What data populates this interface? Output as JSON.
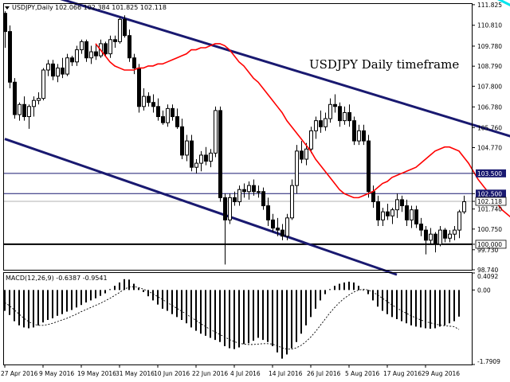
{
  "header": {
    "symbol": "USDJPY,Daily",
    "ohlc": "102.066 102.384 101.825 102.118"
  },
  "annotation": {
    "text": "USDJPY Daily timeframe",
    "color": "#00008b"
  },
  "macd_label": "MACD(12,26,9) -0.6387 -0.9541",
  "colors": {
    "candle": "#000000",
    "ma": "#ff0000",
    "channel": "#191970",
    "hline": "#191970",
    "cyan": "#00e5ee",
    "signal": "#000000",
    "price_tag_bg": "#191970",
    "price_tag_text": "#ffffff"
  },
  "chart_data": [
    {
      "type": "candlestick",
      "title": "USDJPY Daily timeframe",
      "ylim": [
        98.74,
        111.86
      ],
      "y_ticks": [
        "111.825",
        "110.810",
        "109.780",
        "108.790",
        "107.800",
        "106.780",
        "105.760",
        "104.770",
        "103.500",
        "102.500",
        "102.118",
        "101.740",
        "100.750",
        "100.000",
        "99.730",
        "98.740"
      ],
      "x_labels": [
        "27 Apr 2016",
        "9 May 2016",
        "19 May 2016",
        "31 May 2016",
        "10 Jun 2016",
        "22 Jun 2016",
        "4 Jul 2016",
        "14 Jul 2016",
        "26 Jul 2016",
        "5 Aug 2016",
        "17 Aug 2016",
        "29 Aug 2016"
      ],
      "candles": [
        [
          111.4,
          111.5,
          109.7,
          110.5
        ],
        [
          110.5,
          110.8,
          107.7,
          108.0
        ],
        [
          108.0,
          108.2,
          106.2,
          106.4
        ],
        [
          106.4,
          107.0,
          106.1,
          106.9
        ],
        [
          106.9,
          107.3,
          106.1,
          106.3
        ],
        [
          106.3,
          106.9,
          105.7,
          106.8
        ],
        [
          106.8,
          107.3,
          106.3,
          107.1
        ],
        [
          107.1,
          107.5,
          106.9,
          107.2
        ],
        [
          107.2,
          108.7,
          107.1,
          108.6
        ],
        [
          108.6,
          109.1,
          108.3,
          108.9
        ],
        [
          108.9,
          109.1,
          108.1,
          108.3
        ],
        [
          108.3,
          108.9,
          108.0,
          108.7
        ],
        [
          108.7,
          109.2,
          108.2,
          108.4
        ],
        [
          108.4,
          109.4,
          108.3,
          109.2
        ],
        [
          109.2,
          109.3,
          108.8,
          109.0
        ],
        [
          109.0,
          109.8,
          108.8,
          109.6
        ],
        [
          109.6,
          110.1,
          109.4,
          110.0
        ],
        [
          110.0,
          110.1,
          109.0,
          109.2
        ],
        [
          109.2,
          109.8,
          108.9,
          109.5
        ],
        [
          109.5,
          109.9,
          109.1,
          109.3
        ],
        [
          109.3,
          110.1,
          109.2,
          109.9
        ],
        [
          109.9,
          110.0,
          109.3,
          109.4
        ],
        [
          109.4,
          110.3,
          109.2,
          110.1
        ],
        [
          110.1,
          110.3,
          109.7,
          110.0
        ],
        [
          110.0,
          111.2,
          109.9,
          111.1
        ],
        [
          111.1,
          111.3,
          110.2,
          110.3
        ],
        [
          110.3,
          110.6,
          109.0,
          109.2
        ],
        [
          109.2,
          109.4,
          108.4,
          108.7
        ],
        [
          108.7,
          108.9,
          106.5,
          106.8
        ],
        [
          106.8,
          107.7,
          106.6,
          107.3
        ],
        [
          107.3,
          107.5,
          106.8,
          107.0
        ],
        [
          107.0,
          107.4,
          106.5,
          106.8
        ],
        [
          106.8,
          107.2,
          106.1,
          106.3
        ],
        [
          106.3,
          106.6,
          105.9,
          106.0
        ],
        [
          106.0,
          106.9,
          105.8,
          106.7
        ],
        [
          106.7,
          106.9,
          106.1,
          106.3
        ],
        [
          106.3,
          106.7,
          105.7,
          105.8
        ],
        [
          105.8,
          106.2,
          104.2,
          104.4
        ],
        [
          104.4,
          105.4,
          104.1,
          105.1
        ],
        [
          105.1,
          105.4,
          103.6,
          103.8
        ],
        [
          103.8,
          104.2,
          103.5,
          104.0
        ],
        [
          104.0,
          104.6,
          103.6,
          104.4
        ],
        [
          104.4,
          104.8,
          103.9,
          104.1
        ],
        [
          104.1,
          104.7,
          103.8,
          104.5
        ],
        [
          104.5,
          106.8,
          104.3,
          106.6
        ],
        [
          106.6,
          106.8,
          102.1,
          102.3
        ],
        [
          102.3,
          102.5,
          99.0,
          101.2
        ],
        [
          101.2,
          102.5,
          101.0,
          102.3
        ],
        [
          102.3,
          102.6,
          101.9,
          102.1
        ],
        [
          102.1,
          102.9,
          101.9,
          102.7
        ],
        [
          102.7,
          103.0,
          102.3,
          102.6
        ],
        [
          102.6,
          103.1,
          102.2,
          102.9
        ],
        [
          102.9,
          103.2,
          102.4,
          102.6
        ],
        [
          102.6,
          102.9,
          102.3,
          102.6
        ],
        [
          102.6,
          102.8,
          101.7,
          101.9
        ],
        [
          101.9,
          102.3,
          100.9,
          101.2
        ],
        [
          101.2,
          101.5,
          100.6,
          100.8
        ],
        [
          100.8,
          101.3,
          100.4,
          100.7
        ],
        [
          100.7,
          101.0,
          100.2,
          100.4
        ],
        [
          100.4,
          101.5,
          100.2,
          101.3
        ],
        [
          101.3,
          103.2,
          101.2,
          102.9
        ],
        [
          102.9,
          104.9,
          102.5,
          104.6
        ],
        [
          104.6,
          105.1,
          104.0,
          104.2
        ],
        [
          104.2,
          105.0,
          103.9,
          104.7
        ],
        [
          104.7,
          105.8,
          104.5,
          105.6
        ],
        [
          105.6,
          106.3,
          105.2,
          106.1
        ],
        [
          106.1,
          106.6,
          105.5,
          105.8
        ],
        [
          105.8,
          106.5,
          105.6,
          106.2
        ],
        [
          106.2,
          107.2,
          106.0,
          106.9
        ],
        [
          106.9,
          107.4,
          106.5,
          106.8
        ],
        [
          106.8,
          107.0,
          105.8,
          106.1
        ],
        [
          106.1,
          106.8,
          105.9,
          106.5
        ],
        [
          106.5,
          106.9,
          105.8,
          106.1
        ],
        [
          106.1,
          106.3,
          104.9,
          105.1
        ],
        [
          105.1,
          105.9,
          104.9,
          105.6
        ],
        [
          105.6,
          105.9,
          104.9,
          105.1
        ],
        [
          105.1,
          105.4,
          102.3,
          102.6
        ],
        [
          102.6,
          102.9,
          101.8,
          102.1
        ],
        [
          102.1,
          102.4,
          100.9,
          101.2
        ],
        [
          101.2,
          101.8,
          100.9,
          101.6
        ],
        [
          101.6,
          102.0,
          101.2,
          101.4
        ],
        [
          101.4,
          101.8,
          101.0,
          101.7
        ],
        [
          101.7,
          102.5,
          101.3,
          102.2
        ],
        [
          102.2,
          102.4,
          101.6,
          101.9
        ],
        [
          101.9,
          102.2,
          100.9,
          101.2
        ],
        [
          101.2,
          101.9,
          100.8,
          101.7
        ],
        [
          101.7,
          101.9,
          100.8,
          101.0
        ],
        [
          101.0,
          101.3,
          100.4,
          100.7
        ],
        [
          100.7,
          100.9,
          99.5,
          100.2
        ],
        [
          100.2,
          100.8,
          100.0,
          100.5
        ],
        [
          100.5,
          100.6,
          99.6,
          100.0
        ],
        [
          100.0,
          100.9,
          99.9,
          100.7
        ],
        [
          100.7,
          100.8,
          100.1,
          100.3
        ],
        [
          100.3,
          100.7,
          100.1,
          100.5
        ],
        [
          100.5,
          100.9,
          100.2,
          100.7
        ],
        [
          100.7,
          101.7,
          100.3,
          101.6
        ],
        [
          101.6,
          102.4,
          101.5,
          102.1
        ]
      ],
      "ma_period": 20,
      "series": [
        {
          "values": [
            109.9,
            109.6,
            109.3,
            109.0,
            108.8,
            108.7,
            108.6,
            108.6,
            108.6,
            108.7,
            108.7,
            108.8,
            108.8,
            108.9,
            108.9,
            109.0,
            109.1,
            109.2,
            109.3,
            109.4,
            109.6,
            109.6,
            109.7,
            109.7,
            109.8,
            109.9,
            109.9,
            109.8,
            109.6,
            109.3,
            109.0,
            108.8,
            108.5,
            108.2,
            108.0,
            107.7,
            107.4,
            107.1,
            106.8,
            106.5,
            106.1,
            105.8,
            105.5,
            105.2,
            104.9,
            104.6,
            104.2,
            103.9,
            103.6,
            103.3,
            103.0,
            102.7,
            102.5,
            102.4,
            102.3,
            102.3,
            102.4,
            102.5,
            102.6,
            102.8,
            103.0,
            103.1,
            103.3,
            103.4,
            103.5,
            103.6,
            103.7,
            103.8,
            104.0,
            104.2,
            104.4,
            104.6,
            104.7,
            104.8,
            104.8,
            104.7,
            104.6,
            104.3,
            104.0,
            103.6,
            103.2,
            102.9,
            102.6,
            102.3,
            102.0,
            101.7,
            101.5,
            101.3,
            101.2,
            101.1,
            101.0,
            100.9,
            100.9
          ]
        }
      ],
      "lines": {
        "channel_upper": [
          [
            0,
            112.95
          ],
          [
            113,
            104.81
          ]
        ],
        "channel_lower": [
          [
            0,
            105.2
          ],
          [
            82,
            98.5
          ]
        ],
        "cyan_trend": [
          [
            96,
            112.95
          ],
          [
            112,
            111.06
          ]
        ],
        "horizontal": [
          103.5,
          102.5,
          102.118,
          100.0
        ]
      }
    },
    {
      "type": "bar",
      "title": "MACD(12,26,9) -0.6387 -0.9541",
      "ylim": [
        -1.7909,
        0.4092
      ],
      "y_ticks": [
        "0.4092",
        "0.00",
        "-1.7909"
      ],
      "values": [
        -0.5,
        -0.6,
        -0.75,
        -0.85,
        -0.9,
        -0.92,
        -0.9,
        -0.85,
        -0.78,
        -0.72,
        -0.68,
        -0.62,
        -0.58,
        -0.52,
        -0.48,
        -0.42,
        -0.36,
        -0.3,
        -0.25,
        -0.2,
        -0.14,
        -0.08,
        0.02,
        0.1,
        0.18,
        0.26,
        0.25,
        0.15,
        0.05,
        -0.05,
        -0.15,
        -0.25,
        -0.35,
        -0.45,
        -0.5,
        -0.58,
        -0.65,
        -0.72,
        -0.8,
        -0.9,
        -0.98,
        -1.05,
        -1.1,
        -1.15,
        -1.2,
        -1.25,
        -1.35,
        -1.4,
        -1.42,
        -1.38,
        -1.3,
        -1.28,
        -1.22,
        -1.15,
        -1.2,
        -1.25,
        -1.35,
        -1.5,
        -1.65,
        -1.55,
        -1.4,
        -1.25,
        -1.05,
        -0.85,
        -0.65,
        -0.45,
        -0.25,
        -0.1,
        0.02,
        0.1,
        0.15,
        0.18,
        0.2,
        0.18,
        0.1,
        0.0,
        -0.1,
        -0.25,
        -0.4,
        -0.5,
        -0.58,
        -0.65,
        -0.7,
        -0.75,
        -0.8,
        -0.85,
        -0.88,
        -0.9,
        -0.92,
        -0.93,
        -0.92,
        -0.88,
        -0.85,
        -0.8,
        -0.75,
        -0.64
      ],
      "signal": [
        -0.3,
        -0.38,
        -0.48,
        -0.58,
        -0.68,
        -0.76,
        -0.82,
        -0.85,
        -0.85,
        -0.83,
        -0.8,
        -0.76,
        -0.72,
        -0.68,
        -0.63,
        -0.58,
        -0.52,
        -0.47,
        -0.42,
        -0.37,
        -0.32,
        -0.26,
        -0.2,
        -0.13,
        -0.06,
        0.02,
        0.07,
        0.08,
        0.06,
        0.02,
        -0.03,
        -0.09,
        -0.16,
        -0.23,
        -0.3,
        -0.37,
        -0.44,
        -0.51,
        -0.58,
        -0.66,
        -0.73,
        -0.81,
        -0.88,
        -0.95,
        -1.01,
        -1.07,
        -1.13,
        -1.19,
        -1.24,
        -1.28,
        -1.3,
        -1.31,
        -1.31,
        -1.3,
        -1.29,
        -1.29,
        -1.3,
        -1.34,
        -1.39,
        -1.42,
        -1.42,
        -1.39,
        -1.33,
        -1.24,
        -1.13,
        -1.0,
        -0.85,
        -0.7,
        -0.55,
        -0.42,
        -0.3,
        -0.2,
        -0.12,
        -0.05,
        0.0,
        0.02,
        0.0,
        -0.05,
        -0.12,
        -0.2,
        -0.28,
        -0.36,
        -0.43,
        -0.5,
        -0.56,
        -0.62,
        -0.67,
        -0.72,
        -0.76,
        -0.79,
        -0.82,
        -0.84,
        -0.86,
        -0.87,
        -0.88,
        -0.95
      ]
    }
  ]
}
